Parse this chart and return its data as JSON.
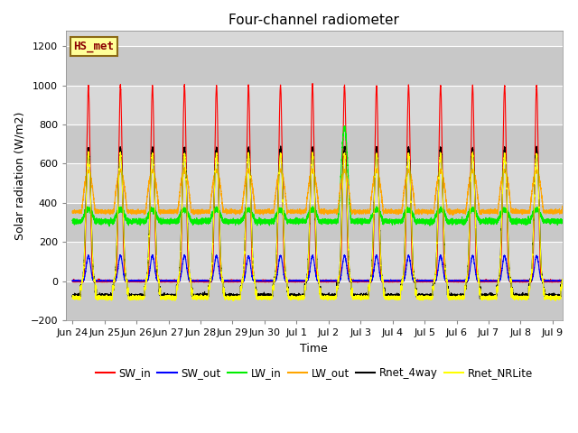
{
  "title": "Four-channel radiometer",
  "xlabel": "Time",
  "ylabel": "Solar radiation (W/m2)",
  "ylim": [
    -200,
    1280
  ],
  "yticks": [
    -200,
    0,
    200,
    400,
    600,
    800,
    1000,
    1200
  ],
  "annotation_text": "HS_met",
  "annotation_color": "#8B0000",
  "annotation_bg": "#FFFF99",
  "annotation_border": "#8B6914",
  "plot_bg": "#D8D8D8",
  "grid_color": "#FFFFFF",
  "xtick_labels": [
    "Jun 24",
    "Jun 25",
    "Jun 26",
    "Jun 27",
    "Jun 28",
    "Jun 29",
    "Jun 30",
    "Jul 1",
    "Jul 2",
    "Jul 3",
    "Jul 4",
    "Jul 5",
    "Jul 6",
    "Jul 7",
    "Jul 8",
    "Jul 9"
  ],
  "tick_fontsize": 8,
  "title_fontsize": 11,
  "label_fontsize": 9,
  "legend_fontsize": 8.5,
  "SW_in_color": "#FF0000",
  "SW_out_color": "#0000FF",
  "LW_in_color": "#00EE00",
  "LW_out_color": "#FFA500",
  "Rnet_4way_color": "#000000",
  "Rnet_NRLite_color": "#FFFF00"
}
